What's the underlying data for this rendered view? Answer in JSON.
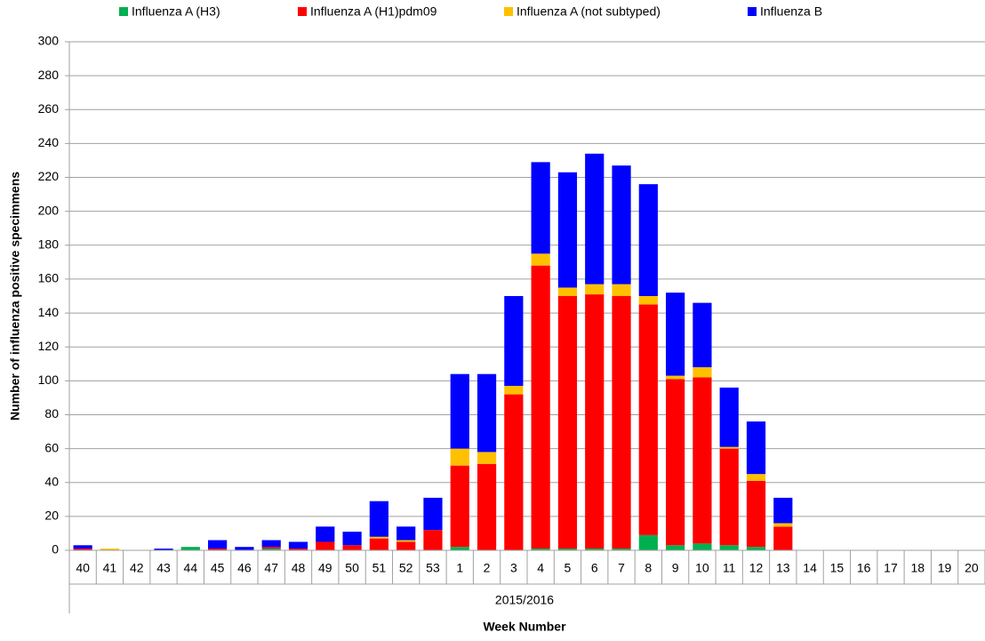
{
  "chart_data": {
    "type": "stacked_bar",
    "x_label": "Week Number",
    "x_group_label": "2015/2016",
    "y_label": "Number of influenza positive specimmens",
    "categories": [
      "40",
      "41",
      "42",
      "43",
      "44",
      "45",
      "46",
      "47",
      "48",
      "49",
      "50",
      "51",
      "52",
      "53",
      "1",
      "2",
      "3",
      "4",
      "5",
      "6",
      "7",
      "8",
      "9",
      "10",
      "11",
      "12",
      "13",
      "14",
      "15",
      "16",
      "17",
      "18",
      "19",
      "20"
    ],
    "series": [
      {
        "name": "Influenza A (H3)",
        "color": "#00b050",
        "values": [
          0,
          0,
          0,
          0,
          2,
          0,
          0,
          1,
          0,
          0,
          0,
          0,
          0,
          0,
          2,
          0,
          0,
          1,
          1,
          1,
          1,
          9,
          3,
          4,
          3,
          2,
          0,
          0,
          0,
          0,
          0,
          0,
          0,
          0
        ]
      },
      {
        "name": "Influenza A (H1)pdm09",
        "color": "#ff0000",
        "values": [
          1,
          0,
          0,
          0,
          0,
          1,
          0,
          1,
          1,
          5,
          3,
          7,
          5,
          12,
          48,
          51,
          92,
          167,
          149,
          150,
          149,
          136,
          98,
          98,
          57,
          39,
          14,
          0,
          0,
          0,
          0,
          0,
          0,
          0
        ]
      },
      {
        "name": "Influenza A (not subtyped)",
        "color": "#ffc000",
        "values": [
          0,
          1,
          0,
          0,
          0,
          0,
          0,
          0,
          0,
          0,
          0,
          1,
          1,
          0,
          10,
          7,
          5,
          7,
          5,
          6,
          7,
          5,
          2,
          6,
          1,
          4,
          2,
          0,
          0,
          0,
          0,
          0,
          0,
          0
        ]
      },
      {
        "name": "Influenza B",
        "color": "#0000ff",
        "values": [
          2,
          0,
          0,
          1,
          0,
          5,
          2,
          4,
          4,
          9,
          8,
          21,
          8,
          19,
          44,
          46,
          53,
          54,
          68,
          77,
          70,
          66,
          49,
          38,
          35,
          31,
          15,
          0,
          0,
          0,
          0,
          0,
          0,
          0
        ]
      }
    ],
    "ylim": [
      0,
      300
    ],
    "yticks": [
      0,
      20,
      40,
      60,
      80,
      100,
      120,
      140,
      160,
      180,
      200,
      220,
      240,
      260,
      280,
      300
    ],
    "grid": true,
    "legend": "top"
  }
}
